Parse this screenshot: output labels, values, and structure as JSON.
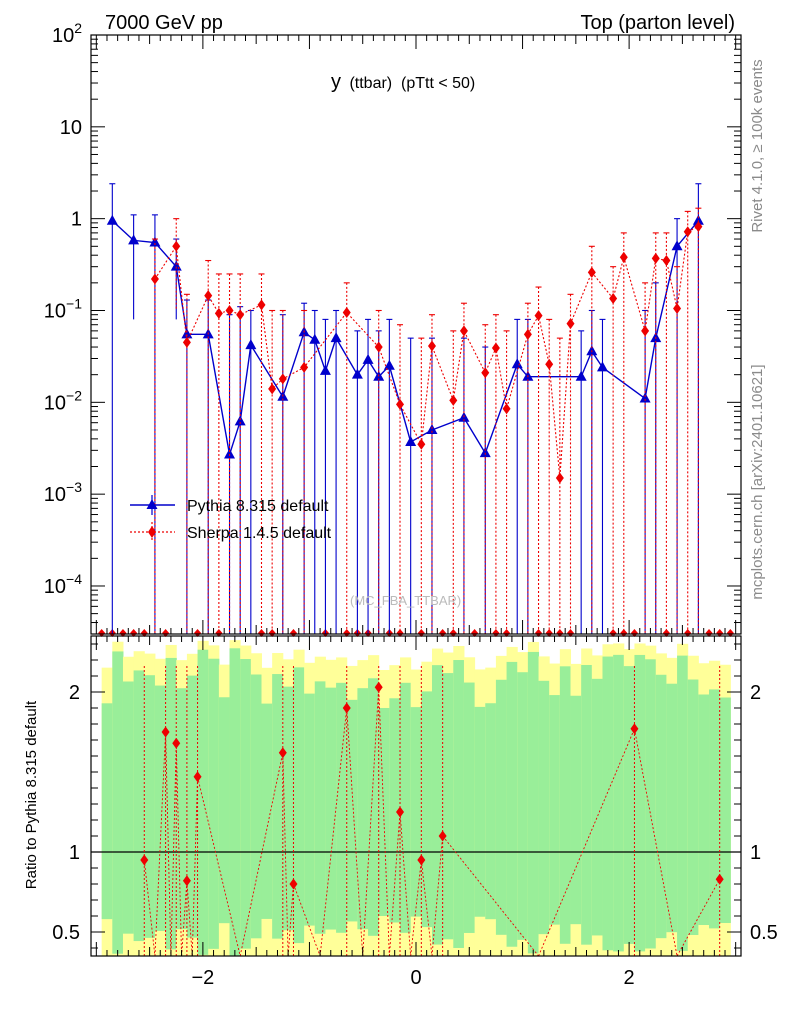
{
  "header": {
    "left": "7000 GeV pp",
    "right": "Top (parton level)"
  },
  "side_labels": {
    "rivet": "Rivet 4.1.0, ≥ 100k events",
    "mcplots": "mcplots.cern.ch [arXiv:2401.10621]"
  },
  "watermark": "(MC_FBA_TTBAR)",
  "chart_data": {
    "type": "scatter",
    "title_main": "y",
    "title_sub": " (ttbar)  (pTtt < 50)",
    "xlabel": "",
    "ylabel_ratio": "Ratio to Pythia 8.315 default",
    "xlim": [
      -3.05,
      3.05
    ],
    "ylim_log": [
      3e-05,
      100
    ],
    "ratio_ylim": [
      0.35,
      2.35
    ],
    "x_ticks": [
      "−2",
      "0",
      "2"
    ],
    "x_tick_values": [
      -2,
      0,
      2
    ],
    "y_ticks": [
      {
        "base": "10",
        "exp": "−4",
        "value": 0.0001
      },
      {
        "base": "10",
        "exp": "−3",
        "value": 0.001
      },
      {
        "base": "10",
        "exp": "−2",
        "value": 0.01
      },
      {
        "base": "10",
        "exp": "−1",
        "value": 0.1
      },
      {
        "base": "1",
        "exp": "",
        "value": 1
      },
      {
        "base": "10",
        "exp": "",
        "value": 10
      },
      {
        "base": "10",
        "exp": "2",
        "value": 100
      }
    ],
    "ratio_ticks": [
      {
        "label": "0.5",
        "value": 0.5
      },
      {
        "label": "1",
        "value": 1
      },
      {
        "label": "2",
        "value": 2
      }
    ],
    "legend": [
      {
        "name": "Pythia 8.315 default",
        "color": "#0000cc",
        "marker": "triangle",
        "dash": false
      },
      {
        "name": "Sherpa 1.4.5 default",
        "color": "#ee0000",
        "marker": "diamond",
        "dash": true
      }
    ],
    "bands": {
      "inner_color": "#99ee99",
      "outer_color": "#ffff99"
    },
    "series": [
      {
        "name": "Pythia 8.315 default",
        "color": "#0000cc",
        "points": [
          {
            "x": -2.85,
            "y": 0.95,
            "lo": 0.0,
            "hi": 2.4
          },
          {
            "x": -2.65,
            "y": 0.58,
            "lo": 0.08,
            "hi": 1.1
          },
          {
            "x": -2.45,
            "y": 0.55,
            "lo": 0.0,
            "hi": 1.1
          },
          {
            "x": -2.25,
            "y": 0.3,
            "lo": 0.08,
            "hi": 0.6
          },
          {
            "x": -2.15,
            "y": 0.055,
            "lo": 0.0,
            "hi": 0.13
          },
          {
            "x": -1.95,
            "y": 0.055,
            "lo": 0.0,
            "hi": 0.13
          },
          {
            "x": -1.75,
            "y": 0.0027,
            "lo": 0.0,
            "hi": 0.09
          },
          {
            "x": -1.65,
            "y": 0.0062,
            "lo": 0.0,
            "hi": 0.11
          },
          {
            "x": -1.55,
            "y": 0.042,
            "lo": 0.0,
            "hi": 0.1
          },
          {
            "x": -1.25,
            "y": 0.0115,
            "lo": 0.0,
            "hi": 0.09
          },
          {
            "x": -1.05,
            "y": 0.058,
            "lo": 0.0,
            "hi": 0.12
          },
          {
            "x": -0.95,
            "y": 0.048,
            "lo": 0.0,
            "hi": 0.1
          },
          {
            "x": -0.85,
            "y": 0.022,
            "lo": 0.0,
            "hi": 0.08
          },
          {
            "x": -0.75,
            "y": 0.05,
            "lo": 0.0,
            "hi": 0.1
          },
          {
            "x": -0.55,
            "y": 0.02,
            "lo": 0.0,
            "hi": 0.06
          },
          {
            "x": -0.45,
            "y": 0.029,
            "lo": 0.0,
            "hi": 0.08
          },
          {
            "x": -0.35,
            "y": 0.019,
            "lo": 0.0,
            "hi": 0.06
          },
          {
            "x": -0.25,
            "y": 0.025,
            "lo": 0.0,
            "hi": 0.08
          },
          {
            "x": -0.05,
            "y": 0.0037,
            "lo": 0.0,
            "hi": 0.05
          },
          {
            "x": 0.15,
            "y": 0.005,
            "lo": 0.0,
            "hi": 0.05
          },
          {
            "x": 0.45,
            "y": 0.0068,
            "lo": 0.0,
            "hi": 0.05
          },
          {
            "x": 0.65,
            "y": 0.0028,
            "lo": 0.0,
            "hi": 0.04
          },
          {
            "x": 0.95,
            "y": 0.026,
            "lo": 0.0,
            "hi": 0.08
          },
          {
            "x": 1.05,
            "y": 0.019,
            "lo": 0.0,
            "hi": 0.08
          },
          {
            "x": 1.55,
            "y": 0.019,
            "lo": 0.0,
            "hi": 0.06
          },
          {
            "x": 1.65,
            "y": 0.036,
            "lo": 0.0,
            "hi": 0.1
          },
          {
            "x": 1.75,
            "y": 0.024,
            "lo": 0.0,
            "hi": 0.08
          },
          {
            "x": 2.15,
            "y": 0.011,
            "lo": 0.0,
            "hi": 0.1
          },
          {
            "x": 2.25,
            "y": 0.05,
            "lo": 0.0,
            "hi": 0.2
          },
          {
            "x": 2.45,
            "y": 0.5,
            "lo": 0.0,
            "hi": 1.0
          },
          {
            "x": 2.65,
            "y": 0.95,
            "lo": 0.0,
            "hi": 2.4
          }
        ]
      },
      {
        "name": "Sherpa 1.4.5 default",
        "color": "#ee0000",
        "points": [
          {
            "x": -2.45,
            "y": 0.22,
            "lo": 0.0,
            "hi": 0.6
          },
          {
            "x": -2.25,
            "y": 0.5,
            "lo": 0.1,
            "hi": 1.0
          },
          {
            "x": -2.15,
            "y": 0.045,
            "lo": 0.0,
            "hi": 0.15
          },
          {
            "x": -1.95,
            "y": 0.145,
            "lo": 0.0,
            "hi": 0.35
          },
          {
            "x": -1.85,
            "y": 0.093,
            "lo": 0.0,
            "hi": 0.25
          },
          {
            "x": -1.75,
            "y": 0.1,
            "lo": 0.0,
            "hi": 0.25
          },
          {
            "x": -1.65,
            "y": 0.09,
            "lo": 0.0,
            "hi": 0.25
          },
          {
            "x": -1.45,
            "y": 0.115,
            "lo": 0.0,
            "hi": 0.25
          },
          {
            "x": -1.35,
            "y": 0.014,
            "lo": 0.0,
            "hi": 0.1
          },
          {
            "x": -1.25,
            "y": 0.018,
            "lo": 0.0,
            "hi": 0.1
          },
          {
            "x": -1.05,
            "y": 0.024,
            "lo": 0.0,
            "hi": 0.1
          },
          {
            "x": -0.65,
            "y": 0.095,
            "lo": 0.0,
            "hi": 0.2
          },
          {
            "x": -0.35,
            "y": 0.04,
            "lo": 0.0,
            "hi": 0.1
          },
          {
            "x": -0.15,
            "y": 0.0095,
            "lo": 0.0,
            "hi": 0.07
          },
          {
            "x": 0.05,
            "y": 0.0035,
            "lo": 0.0,
            "hi": 0.05
          },
          {
            "x": 0.15,
            "y": 0.041,
            "lo": 0.0,
            "hi": 0.09
          },
          {
            "x": 0.35,
            "y": 0.0105,
            "lo": 0.0,
            "hi": 0.06
          },
          {
            "x": 0.45,
            "y": 0.06,
            "lo": 0.0,
            "hi": 0.12
          },
          {
            "x": 0.65,
            "y": 0.021,
            "lo": 0.0,
            "hi": 0.07
          },
          {
            "x": 0.75,
            "y": 0.039,
            "lo": 0.0,
            "hi": 0.09
          },
          {
            "x": 0.85,
            "y": 0.0085,
            "lo": 0.0,
            "hi": 0.06
          },
          {
            "x": 1.05,
            "y": 0.055,
            "lo": 0.0,
            "hi": 0.12
          },
          {
            "x": 1.15,
            "y": 0.088,
            "lo": 0.0,
            "hi": 0.18
          },
          {
            "x": 1.25,
            "y": 0.026,
            "lo": 0.0,
            "hi": 0.08
          },
          {
            "x": 1.35,
            "y": 0.0015,
            "lo": 0.0,
            "hi": 0.05
          },
          {
            "x": 1.45,
            "y": 0.072,
            "lo": 0.0,
            "hi": 0.15
          },
          {
            "x": 1.65,
            "y": 0.26,
            "lo": 0.0,
            "hi": 0.5
          },
          {
            "x": 1.85,
            "y": 0.135,
            "lo": 0.0,
            "hi": 0.3
          },
          {
            "x": 1.95,
            "y": 0.38,
            "lo": 0.0,
            "hi": 0.7
          },
          {
            "x": 2.15,
            "y": 0.06,
            "lo": 0.0,
            "hi": 0.2
          },
          {
            "x": 2.25,
            "y": 0.37,
            "lo": 0.0,
            "hi": 0.7
          },
          {
            "x": 2.35,
            "y": 0.35,
            "lo": 0.0,
            "hi": 0.7
          },
          {
            "x": 2.45,
            "y": 0.105,
            "lo": 0.0,
            "hi": 0.3
          },
          {
            "x": 2.55,
            "y": 0.72,
            "lo": 0.0,
            "hi": 1.2
          },
          {
            "x": 2.65,
            "y": 0.82,
            "lo": 0.0,
            "hi": 1.3
          }
        ]
      }
    ],
    "zero_bins_x": [
      -2.95,
      -2.85,
      -2.75,
      -2.65,
      -2.55,
      -2.35,
      -2.05,
      -1.85,
      -1.45,
      -1.35,
      -1.15,
      -0.85,
      -0.65,
      -0.55,
      -0.45,
      -0.25,
      -0.15,
      0.05,
      0.25,
      0.35,
      0.55,
      0.75,
      0.85,
      1.15,
      1.25,
      1.35,
      1.45,
      1.85,
      1.95,
      2.05,
      2.35,
      2.55,
      2.75,
      2.85,
      2.95
    ],
    "ratio_points": [
      {
        "x": -2.55,
        "y": 0.95
      },
      {
        "x": -2.35,
        "y": 1.75
      },
      {
        "x": -2.25,
        "y": 1.68
      },
      {
        "x": -2.15,
        "y": 0.82
      },
      {
        "x": -2.05,
        "y": 1.47
      },
      {
        "x": -1.25,
        "y": 1.62
      },
      {
        "x": -1.15,
        "y": 0.8
      },
      {
        "x": -0.65,
        "y": 1.9
      },
      {
        "x": -0.35,
        "y": 2.03
      },
      {
        "x": -0.15,
        "y": 1.25
      },
      {
        "x": 0.05,
        "y": 0.95
      },
      {
        "x": 0.25,
        "y": 1.1
      },
      {
        "x": 2.05,
        "y": 1.77
      },
      {
        "x": 2.85,
        "y": 0.83
      }
    ]
  }
}
